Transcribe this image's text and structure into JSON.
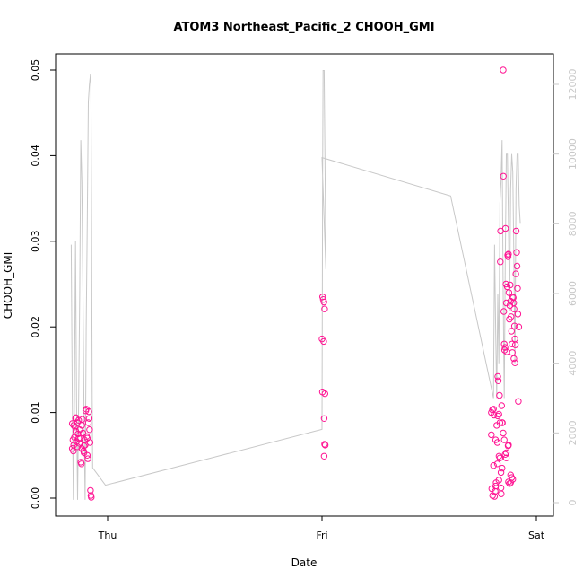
{
  "chart_data": {
    "type": "scatter",
    "title": "ATOM3 Northeast_Pacific_2 CHOOH_GMI",
    "xlabel": "Date",
    "ylabel": "CHOOH_GMI",
    "x_tick_labels": [
      "Thu",
      "Fri",
      "Sat"
    ],
    "x_ticks_days": [
      0,
      1,
      2
    ],
    "xlim_days": [
      -0.2,
      2.06
    ],
    "ylim": [
      -0.002,
      0.052
    ],
    "y_ticks": [
      0.0,
      0.01,
      0.02,
      0.03,
      0.04,
      0.05
    ],
    "y_tick_labels": [
      "0.00",
      "0.01",
      "0.02",
      "0.03",
      "0.04",
      "0.05"
    ],
    "y2_range": [
      -500,
      13000
    ],
    "y2_ticks": [
      0,
      2000,
      4000,
      6000,
      8000,
      10000,
      12000
    ],
    "y2_tick_labels": [
      "0",
      "2000",
      "4000",
      "6000",
      "8000",
      "10000",
      "12000"
    ],
    "colors": {
      "points": "#ff1493",
      "altitude_line": "#c8c8c8",
      "axes": "#000000",
      "right_axis": "#c8c8c8"
    },
    "series": [
      {
        "type": "scatter",
        "points": [
          [
            -0.165,
            0.0087
          ],
          [
            -0.162,
            0.0068
          ],
          [
            -0.16,
            0.0055
          ],
          [
            -0.158,
            0.0062
          ],
          [
            -0.155,
            0.0071
          ],
          [
            -0.152,
            0.0083
          ],
          [
            -0.15,
            0.0093
          ],
          [
            -0.148,
            0.0078
          ],
          [
            -0.145,
            0.0066
          ],
          [
            -0.142,
            0.0088
          ],
          [
            -0.14,
            0.006
          ],
          [
            -0.138,
            0.0075
          ],
          [
            -0.135,
            0.0091
          ],
          [
            -0.132,
            0.0064
          ],
          [
            -0.13,
            0.008
          ],
          [
            -0.128,
            0.007
          ],
          [
            -0.125,
            0.0042
          ],
          [
            -0.122,
            0.004
          ],
          [
            -0.12,
            0.0085
          ],
          [
            -0.118,
            0.0092
          ],
          [
            -0.115,
            0.0076
          ],
          [
            -0.112,
            0.0055
          ],
          [
            -0.11,
            0.0053
          ],
          [
            -0.108,
            0.0068
          ],
          [
            -0.105,
            0.0062
          ],
          [
            -0.102,
            0.0102
          ],
          [
            -0.1,
            0.0104
          ],
          [
            -0.098,
            0.0072
          ],
          [
            -0.095,
            0.005
          ],
          [
            -0.092,
            0.0046
          ],
          [
            -0.09,
            0.0088
          ],
          [
            -0.088,
            0.0101
          ],
          [
            -0.086,
            0.0093
          ],
          [
            -0.084,
            0.008
          ],
          [
            -0.082,
            0.0065
          ],
          [
            -0.08,
            0.0009
          ],
          [
            -0.078,
            0.0003
          ],
          [
            -0.076,
            0.0001
          ],
          [
            -0.165,
            0.0058
          ],
          [
            -0.158,
            0.0085
          ],
          [
            -0.148,
            0.0094
          ],
          [
            -0.135,
            0.007
          ],
          [
            -0.12,
            0.0058
          ],
          [
            -0.11,
            0.0061
          ],
          [
            -0.095,
            0.007
          ],
          [
            1.003,
            0.0235
          ],
          [
            1.006,
            0.0232
          ],
          [
            1.009,
            0.0229
          ],
          [
            1.012,
            0.0221
          ],
          [
            1.0,
            0.0186
          ],
          [
            1.008,
            0.0183
          ],
          [
            1.002,
            0.0124
          ],
          [
            1.014,
            0.0122
          ],
          [
            1.01,
            0.0093
          ],
          [
            1.012,
            0.0063
          ],
          [
            1.015,
            0.0062
          ],
          [
            1.01,
            0.0049
          ],
          [
            1.79,
            0.01
          ],
          [
            1.795,
            0.0103
          ],
          [
            1.8,
            0.0104
          ],
          [
            1.802,
            0.0097
          ],
          [
            1.79,
            0.0074
          ],
          [
            1.792,
            0.0011
          ],
          [
            1.796,
            0.0003
          ],
          [
            1.8,
            0.0038
          ],
          [
            1.805,
            0.0002
          ],
          [
            1.808,
            0.0008
          ],
          [
            1.81,
            0.0014
          ],
          [
            1.815,
            0.0085
          ],
          [
            1.818,
            0.0065
          ],
          [
            1.82,
            0.0142
          ],
          [
            1.822,
            0.0137
          ],
          [
            1.825,
            0.0098
          ],
          [
            1.826,
            0.0049
          ],
          [
            1.828,
            0.012
          ],
          [
            1.83,
            0.0088
          ],
          [
            1.832,
            0.0276
          ],
          [
            1.833,
            0.0312
          ],
          [
            1.835,
            0.0012
          ],
          [
            1.836,
            0.0005
          ],
          [
            1.838,
            0.0108
          ],
          [
            1.84,
            0.0035
          ],
          [
            1.842,
            0.0088
          ],
          [
            1.845,
            0.05
          ],
          [
            1.846,
            0.0376
          ],
          [
            1.848,
            0.0218
          ],
          [
            1.85,
            0.018
          ],
          [
            1.852,
            0.0173
          ],
          [
            1.854,
            0.0176
          ],
          [
            1.856,
            0.0315
          ],
          [
            1.858,
            0.025
          ],
          [
            1.86,
            0.0228
          ],
          [
            1.862,
            0.0171
          ],
          [
            1.864,
            0.0247
          ],
          [
            1.866,
            0.0284
          ],
          [
            1.868,
            0.0282
          ],
          [
            1.87,
            0.0285
          ],
          [
            1.872,
            0.024
          ],
          [
            1.874,
            0.0209
          ],
          [
            1.876,
            0.0225
          ],
          [
            1.878,
            0.0249
          ],
          [
            1.88,
            0.023
          ],
          [
            1.882,
            0.0212
          ],
          [
            1.884,
            0.0195
          ],
          [
            1.886,
            0.018
          ],
          [
            1.888,
            0.017
          ],
          [
            1.89,
            0.0235
          ],
          [
            1.892,
            0.0234
          ],
          [
            1.894,
            0.0228
          ],
          [
            1.896,
            0.0221
          ],
          [
            1.898,
            0.0201
          ],
          [
            1.9,
            0.0186
          ],
          [
            1.902,
            0.0179
          ],
          [
            1.904,
            0.0262
          ],
          [
            1.906,
            0.0312
          ],
          [
            1.908,
            0.0287
          ],
          [
            1.91,
            0.0271
          ],
          [
            1.912,
            0.0245
          ],
          [
            1.914,
            0.0215
          ],
          [
            1.916,
            0.0113
          ],
          [
            1.918,
            0.02
          ],
          [
            1.88,
            0.0027
          ],
          [
            1.885,
            0.0024
          ],
          [
            1.89,
            0.0022
          ],
          [
            1.87,
            0.0019
          ],
          [
            1.875,
            0.0017
          ],
          [
            1.868,
            0.0061
          ],
          [
            1.895,
            0.0163
          ],
          [
            1.9,
            0.0158
          ],
          [
            1.86,
            0.0053
          ],
          [
            1.855,
            0.0051
          ],
          [
            1.85,
            0.0068
          ],
          [
            1.845,
            0.0076
          ],
          [
            1.84,
            0.0088
          ],
          [
            1.81,
            0.0068
          ],
          [
            1.82,
            0.0096
          ],
          [
            1.83,
            0.0047
          ],
          [
            1.835,
            0.003
          ],
          [
            1.86,
            0.0047
          ],
          [
            1.825,
            0.0021
          ],
          [
            1.818,
            0.004
          ],
          [
            1.812,
            0.0018
          ],
          [
            1.87,
            0.0062
          ],
          [
            1.88,
            0.0018
          ]
        ]
      },
      {
        "type": "line",
        "axis": "right",
        "points": [
          [
            -0.17,
            7400
          ],
          [
            -0.165,
            3000
          ],
          [
            -0.16,
            80
          ],
          [
            -0.155,
            3000
          ],
          [
            -0.15,
            7500
          ],
          [
            -0.145,
            3000
          ],
          [
            -0.14,
            80
          ],
          [
            -0.135,
            3000
          ],
          [
            -0.13,
            6000
          ],
          [
            -0.125,
            10400
          ],
          [
            -0.12,
            9200
          ],
          [
            -0.115,
            6000
          ],
          [
            -0.11,
            2500
          ],
          [
            -0.105,
            80
          ],
          [
            -0.1,
            5000
          ],
          [
            -0.095,
            8000
          ],
          [
            -0.09,
            11500
          ],
          [
            -0.085,
            12000
          ],
          [
            -0.08,
            12300
          ],
          [
            -0.078,
            11800
          ],
          [
            -0.075,
            8000
          ],
          [
            -0.072,
            3000
          ],
          [
            -0.07,
            1000
          ],
          [
            -0.01,
            500
          ],
          [
            1.0,
            2100
          ],
          [
            1.003,
            9500
          ],
          [
            1.005,
            12400
          ],
          [
            1.01,
            12400
          ],
          [
            1.015,
            9000
          ],
          [
            1.018,
            6700
          ],
          [
            1.0,
            9900
          ],
          [
            1.6,
            8800
          ],
          [
            1.8,
            3000
          ],
          [
            1.805,
            7400
          ],
          [
            1.81,
            5000
          ],
          [
            1.815,
            3000
          ],
          [
            1.82,
            6000
          ],
          [
            1.825,
            4000
          ],
          [
            1.83,
            8600
          ],
          [
            1.835,
            9200
          ],
          [
            1.84,
            10400
          ],
          [
            1.845,
            6000
          ],
          [
            1.85,
            3000
          ],
          [
            1.855,
            6800
          ],
          [
            1.86,
            10000
          ],
          [
            1.865,
            10000
          ],
          [
            1.87,
            8000
          ],
          [
            1.875,
            5500
          ],
          [
            1.88,
            9000
          ],
          [
            1.885,
            10000
          ],
          [
            1.89,
            9500
          ],
          [
            1.895,
            7000
          ],
          [
            1.9,
            4000
          ],
          [
            1.905,
            9000
          ],
          [
            1.91,
            10000
          ],
          [
            1.915,
            10000
          ],
          [
            1.92,
            8500
          ],
          [
            1.925,
            8000
          ]
        ]
      }
    ]
  }
}
